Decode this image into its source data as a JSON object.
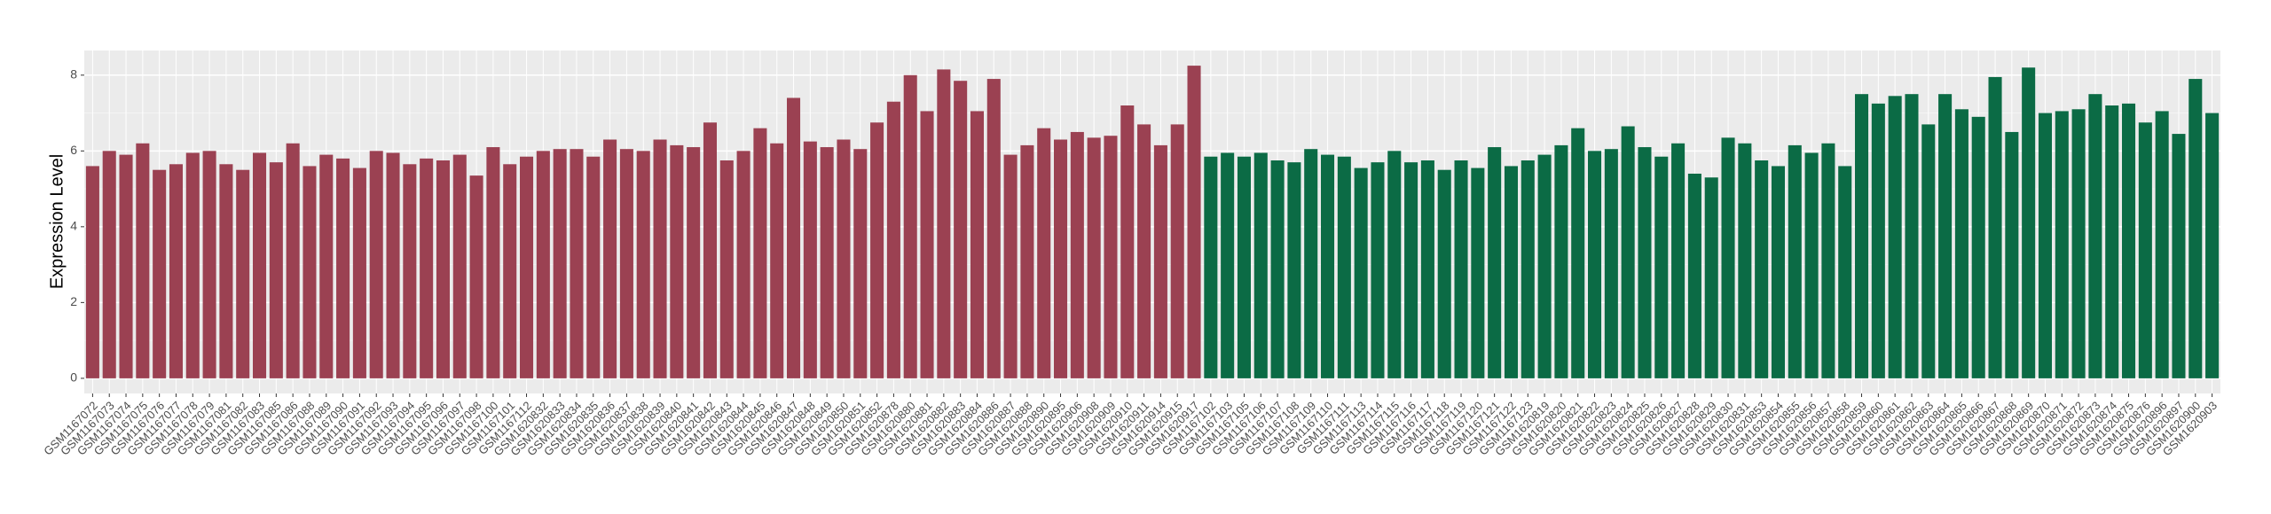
{
  "chart_data": {
    "type": "bar",
    "y_label": "Expression Level",
    "categories": [
      "GSM1167072",
      "GSM1167073",
      "GSM1167074",
      "GSM1167075",
      "GSM1167076",
      "GSM1167077",
      "GSM1167078",
      "GSM1167079",
      "GSM1167081",
      "GSM1167082",
      "GSM1167083",
      "GSM1167085",
      "GSM1167086",
      "GSM1167088",
      "GSM1167089",
      "GSM1167090",
      "GSM1167091",
      "GSM1167092",
      "GSM1167093",
      "GSM1167094",
      "GSM1167095",
      "GSM1167096",
      "GSM1167097",
      "GSM1167098",
      "GSM1167100",
      "GSM1167101",
      "GSM1167112",
      "GSM1620832",
      "GSM1620833",
      "GSM1620834",
      "GSM1620835",
      "GSM1620836",
      "GSM1620837",
      "GSM1620838",
      "GSM1620839",
      "GSM1620840",
      "GSM1620841",
      "GSM1620842",
      "GSM1620843",
      "GSM1620844",
      "GSM1620845",
      "GSM1620846",
      "GSM1620847",
      "GSM1620848",
      "GSM1620849",
      "GSM1620850",
      "GSM1620851",
      "GSM1620852",
      "GSM1620878",
      "GSM1620880",
      "GSM1620881",
      "GSM1620882",
      "GSM1620883",
      "GSM1620884",
      "GSM1620886",
      "GSM1620887",
      "GSM1620888",
      "GSM1620890",
      "GSM1620895",
      "GSM1620906",
      "GSM1620908",
      "GSM1620909",
      "GSM1620910",
      "GSM1620911",
      "GSM1620914",
      "GSM1620915",
      "GSM1620917",
      "GSM1167102",
      "GSM1167103",
      "GSM1167105",
      "GSM1167106",
      "GSM1167107",
      "GSM1167108",
      "GSM1167109",
      "GSM1167110",
      "GSM1167111",
      "GSM1167113",
      "GSM1167114",
      "GSM1167115",
      "GSM1167116",
      "GSM1167117",
      "GSM1167118",
      "GSM1167119",
      "GSM1167120",
      "GSM1167121",
      "GSM1167122",
      "GSM1167123",
      "GSM1620819",
      "GSM1620820",
      "GSM1620821",
      "GSM1620822",
      "GSM1620823",
      "GSM1620824",
      "GSM1620825",
      "GSM1620826",
      "GSM1620827",
      "GSM1620828",
      "GSM1620829",
      "GSM1620830",
      "GSM1620831",
      "GSM1620853",
      "GSM1620854",
      "GSM1620855",
      "GSM1620856",
      "GSM1620857",
      "GSM1620858",
      "GSM1620859",
      "GSM1620860",
      "GSM1620861",
      "GSM1620862",
      "GSM1620863",
      "GSM1620864",
      "GSM1620865",
      "GSM1620866",
      "GSM1620867",
      "GSM1620868",
      "GSM1620869",
      "GSM1620870",
      "GSM1620871",
      "GSM1620872",
      "GSM1620873",
      "GSM1620874",
      "GSM1620875",
      "GSM1620876",
      "GSM1620896",
      "GSM1620897",
      "GSM1620900",
      "GSM1620903"
    ],
    "series": [
      {
        "color": "#9b4152",
        "values": [
          5.6,
          6.0,
          5.9,
          6.2,
          5.5,
          5.65,
          5.95,
          6.0,
          5.65,
          5.5,
          5.95,
          5.7,
          6.2,
          5.6,
          5.9,
          5.8,
          5.55,
          6.0,
          5.95,
          5.65,
          5.8,
          5.75,
          5.9,
          5.35,
          6.1,
          5.65,
          5.85,
          6.0,
          6.05,
          6.05,
          5.85,
          6.3,
          6.05,
          6.0,
          6.3,
          6.15,
          6.1,
          6.75,
          5.75,
          6.0,
          6.6,
          6.2,
          7.4,
          6.25,
          6.1,
          6.3,
          6.05,
          6.75,
          7.3,
          8.0,
          7.05,
          8.15,
          7.85,
          7.05,
          7.9,
          5.9,
          6.15,
          6.6,
          6.3,
          6.5,
          6.35,
          6.4,
          7.2,
          6.7,
          6.15,
          6.7,
          8.25,
          null,
          null,
          null,
          null,
          null,
          null,
          null,
          null,
          null,
          null,
          null,
          null,
          null,
          null,
          null,
          null,
          null,
          null,
          null,
          null,
          null,
          null,
          null,
          null,
          null,
          null,
          null,
          null,
          null,
          null,
          null,
          null,
          null,
          null,
          null,
          null,
          null,
          null,
          null,
          null,
          null,
          null,
          null,
          null,
          null,
          null,
          null,
          null,
          null,
          null,
          null,
          null,
          null,
          null,
          null,
          null,
          null,
          null,
          null,
          null,
          null
        ]
      },
      {
        "color": "#0b6b45",
        "values": [
          null,
          null,
          null,
          null,
          null,
          null,
          null,
          null,
          null,
          null,
          null,
          null,
          null,
          null,
          null,
          null,
          null,
          null,
          null,
          null,
          null,
          null,
          null,
          null,
          null,
          null,
          null,
          null,
          null,
          null,
          null,
          null,
          null,
          null,
          null,
          null,
          null,
          null,
          null,
          null,
          null,
          null,
          null,
          null,
          null,
          null,
          null,
          null,
          null,
          null,
          null,
          null,
          null,
          null,
          null,
          null,
          null,
          null,
          null,
          null,
          null,
          null,
          null,
          null,
          null,
          null,
          null,
          5.85,
          5.95,
          5.85,
          5.95,
          5.75,
          5.7,
          6.05,
          5.9,
          5.85,
          5.55,
          5.7,
          6.0,
          5.7,
          5.75,
          5.5,
          5.75,
          5.55,
          6.1,
          5.6,
          5.75,
          5.9,
          6.15,
          6.6,
          6.0,
          6.05,
          6.65,
          6.1,
          5.85,
          6.2,
          5.4,
          5.3,
          6.35,
          6.2,
          5.75,
          5.6,
          6.15,
          5.95,
          6.2,
          5.6,
          7.5,
          7.25,
          7.45,
          7.5,
          6.7,
          7.5,
          7.1,
          6.9,
          7.95,
          6.5,
          8.2,
          7.0,
          7.05,
          7.1,
          7.5,
          7.2,
          7.25,
          6.75,
          7.05,
          6.45,
          7.9,
          7.0
        ]
      }
    ],
    "ylim": [
      -0.4,
      8.65
    ],
    "yticks": [
      0,
      2,
      4,
      6,
      8
    ],
    "grid": true
  }
}
